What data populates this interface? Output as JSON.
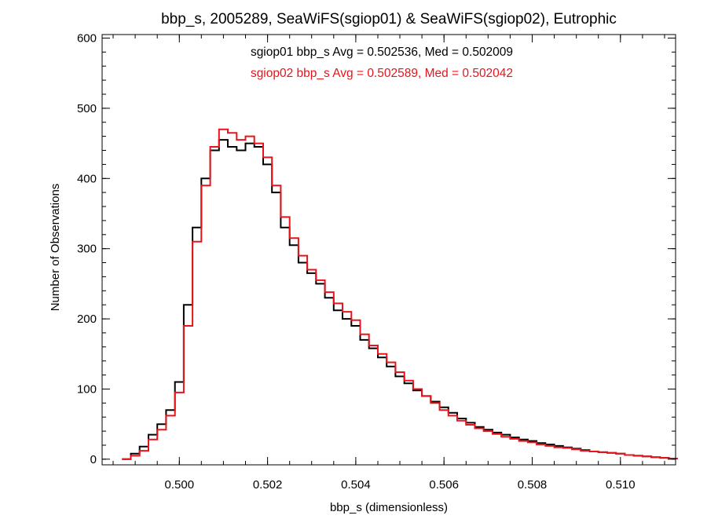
{
  "chart_data": {
    "type": "line",
    "style": "step histogram",
    "title": "bbp_s, 2005289, SeaWiFS(sgiop01) & SeaWiFS(sgiop02), Eutrophic",
    "xlabel": "bbp_s (dimensionless)",
    "ylabel": "Number of Observations",
    "xlim": [
      0.49825,
      0.51125
    ],
    "ylim": [
      -8,
      605
    ],
    "x_ticks": [
      {
        "value": 0.5,
        "label": "0.500"
      },
      {
        "value": 0.502,
        "label": "0.502"
      },
      {
        "value": 0.504,
        "label": "0.504"
      },
      {
        "value": 0.506,
        "label": "0.506"
      },
      {
        "value": 0.508,
        "label": "0.508"
      },
      {
        "value": 0.51,
        "label": "0.510"
      }
    ],
    "y_ticks": [
      {
        "value": 0,
        "label": "0"
      },
      {
        "value": 100,
        "label": "100"
      },
      {
        "value": 200,
        "label": "200"
      },
      {
        "value": 300,
        "label": "300"
      },
      {
        "value": 400,
        "label": "400"
      },
      {
        "value": 500,
        "label": "500"
      },
      {
        "value": 600,
        "label": "600"
      }
    ],
    "grid": false,
    "legend_placement": "top-center",
    "annotations": [
      {
        "text": "sgiop01 bbp_s Avg = 0.502536, Med = 0.502009",
        "color": "#000000"
      },
      {
        "text": "sgiop02 bbp_s Avg = 0.502589, Med = 0.502042",
        "color": "#e8141b"
      }
    ],
    "series": [
      {
        "color": "#000000",
        "x": [
          0.4988,
          0.499,
          0.4992,
          0.4994,
          0.4996,
          0.4998,
          0.5,
          0.5002,
          0.5004,
          0.5006,
          0.5008,
          0.501,
          0.5012,
          0.5014,
          0.5016,
          0.5018,
          0.502,
          0.5022,
          0.5024,
          0.5026,
          0.5028,
          0.503,
          0.5032,
          0.5034,
          0.5036,
          0.5038,
          0.504,
          0.5042,
          0.5044,
          0.5046,
          0.5048,
          0.505,
          0.5052,
          0.5054,
          0.5056,
          0.5058,
          0.506,
          0.5062,
          0.5064,
          0.5066,
          0.5068,
          0.507,
          0.5072,
          0.5074,
          0.5076,
          0.5078,
          0.508,
          0.5082,
          0.5084,
          0.5086,
          0.5088,
          0.509,
          0.5092,
          0.5094,
          0.5096,
          0.5098,
          0.51,
          0.5102,
          0.5104,
          0.5106,
          0.5108,
          0.511,
          0.5112
        ],
        "y": [
          0,
          8,
          18,
          35,
          50,
          70,
          110,
          220,
          330,
          400,
          440,
          455,
          445,
          440,
          450,
          445,
          420,
          380,
          330,
          305,
          280,
          265,
          250,
          230,
          212,
          200,
          190,
          170,
          158,
          145,
          132,
          118,
          108,
          98,
          90,
          82,
          74,
          66,
          58,
          52,
          46,
          42,
          38,
          35,
          31,
          28,
          26,
          23,
          21,
          19,
          17,
          15,
          13,
          11,
          10,
          9,
          8,
          6,
          5,
          4,
          3,
          2,
          1
        ]
      },
      {
        "color": "#e8141b",
        "x": [
          0.4988,
          0.499,
          0.4992,
          0.4994,
          0.4996,
          0.4998,
          0.5,
          0.5002,
          0.5004,
          0.5006,
          0.5008,
          0.501,
          0.5012,
          0.5014,
          0.5016,
          0.5018,
          0.502,
          0.5022,
          0.5024,
          0.5026,
          0.5028,
          0.503,
          0.5032,
          0.5034,
          0.5036,
          0.5038,
          0.504,
          0.5042,
          0.5044,
          0.5046,
          0.5048,
          0.505,
          0.5052,
          0.5054,
          0.5056,
          0.5058,
          0.506,
          0.5062,
          0.5064,
          0.5066,
          0.5068,
          0.507,
          0.5072,
          0.5074,
          0.5076,
          0.5078,
          0.508,
          0.5082,
          0.5084,
          0.5086,
          0.5088,
          0.509,
          0.5092,
          0.5094,
          0.5096,
          0.5098,
          0.51,
          0.5102,
          0.5104,
          0.5106,
          0.5108,
          0.511,
          0.5112
        ],
        "y": [
          0,
          5,
          12,
          28,
          42,
          62,
          95,
          190,
          310,
          390,
          445,
          470,
          465,
          455,
          460,
          450,
          430,
          390,
          345,
          315,
          290,
          270,
          255,
          238,
          222,
          210,
          198,
          178,
          162,
          150,
          138,
          124,
          112,
          100,
          90,
          80,
          70,
          62,
          55,
          49,
          44,
          40,
          36,
          32,
          29,
          26,
          24,
          21,
          19,
          17,
          16,
          14,
          12,
          11,
          10,
          9,
          8,
          6,
          5,
          4,
          3,
          2,
          1
        ]
      }
    ]
  }
}
